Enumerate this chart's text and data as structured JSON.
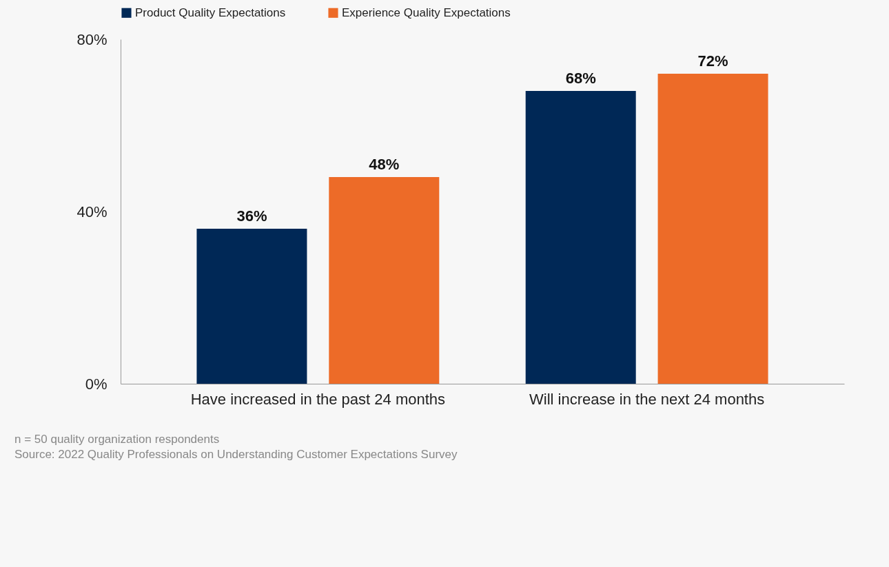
{
  "chart_data": {
    "type": "bar",
    "categories": [
      "Have increased in the past 24 months",
      "Will increase in the next 24 months"
    ],
    "series": [
      {
        "name": "Product Quality Expectations",
        "color": "#002856",
        "values": [
          36,
          68
        ],
        "value_labels": [
          "36%",
          "68%"
        ]
      },
      {
        "name": "Experience Quality Expectations",
        "color": "#ed6b28",
        "values": [
          48,
          72
        ],
        "value_labels": [
          "48%",
          "72%"
        ]
      }
    ],
    "ylim": [
      0,
      80
    ],
    "yticks": [
      {
        "value": 0,
        "label": "0%"
      },
      {
        "value": 40,
        "label": "40%"
      },
      {
        "value": 80,
        "label": "80%"
      }
    ],
    "grid": false,
    "legend": "top left",
    "annotations": [
      "n = 50 quality organization respondents",
      "Source: 2022 Quality Professionals on Understanding Customer Expectations Survey"
    ]
  }
}
